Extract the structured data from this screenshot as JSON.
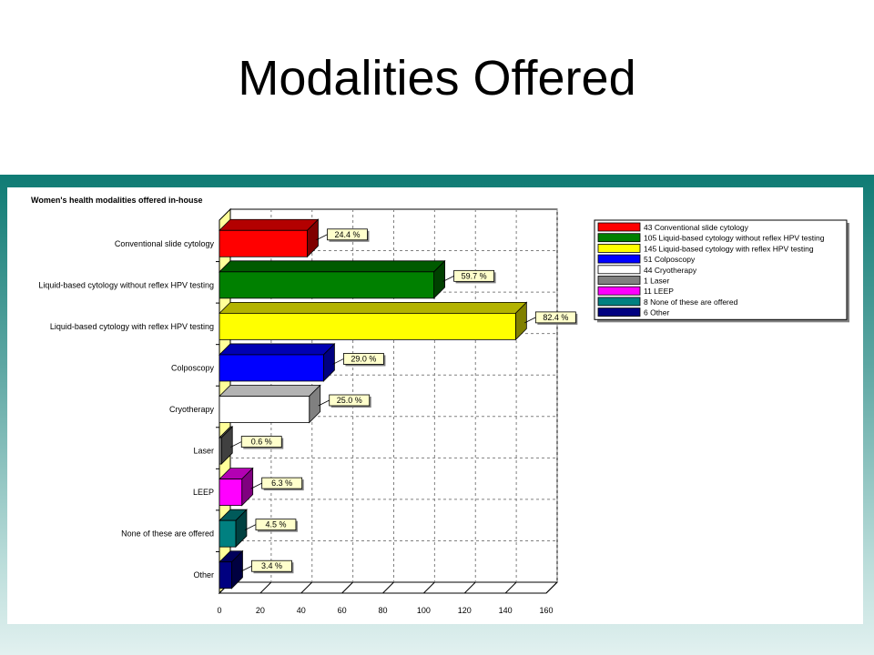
{
  "slide": {
    "title": "Modalities Offered"
  },
  "chart_data": {
    "type": "bar",
    "orientation": "horizontal",
    "title": "Women's health modalities offered in-house",
    "xlim": [
      0,
      160
    ],
    "x_ticks": [
      "0",
      "20",
      "40",
      "60",
      "80",
      "100",
      "120",
      "140",
      "160"
    ],
    "grid": true,
    "legend_position": "right",
    "categories": [
      "Conventional slide cytology",
      "Liquid-based cytology without reflex HPV testing",
      "Liquid-based cytology with reflex HPV testing",
      "Colposcopy",
      "Cryotherapy",
      "Laser",
      "LEEP",
      "None of these are offered",
      "Other"
    ],
    "values": [
      43,
      105,
      145,
      51,
      44,
      1,
      11,
      8,
      6
    ],
    "percent_labels": [
      "24.4 %",
      "59.7 %",
      "82.4 %",
      "29.0 %",
      "25.0 %",
      "0.6 %",
      "6.3 %",
      "4.5 %",
      "3.4 %"
    ],
    "colors": [
      "#ff0000",
      "#008000",
      "#ffff00",
      "#0000ff",
      "#ffffff",
      "#808080",
      "#ff00ff",
      "#008080",
      "#000080"
    ],
    "legend": [
      "43 Conventional slide cytology",
      "105 Liquid-based cytology without reflex HPV testing",
      "145 Liquid-based cytology with reflex HPV testing",
      "51 Colposcopy",
      "44 Cryotherapy",
      "1 Laser",
      "11 LEEP",
      "8 None of these are offered",
      "6 Other"
    ]
  }
}
